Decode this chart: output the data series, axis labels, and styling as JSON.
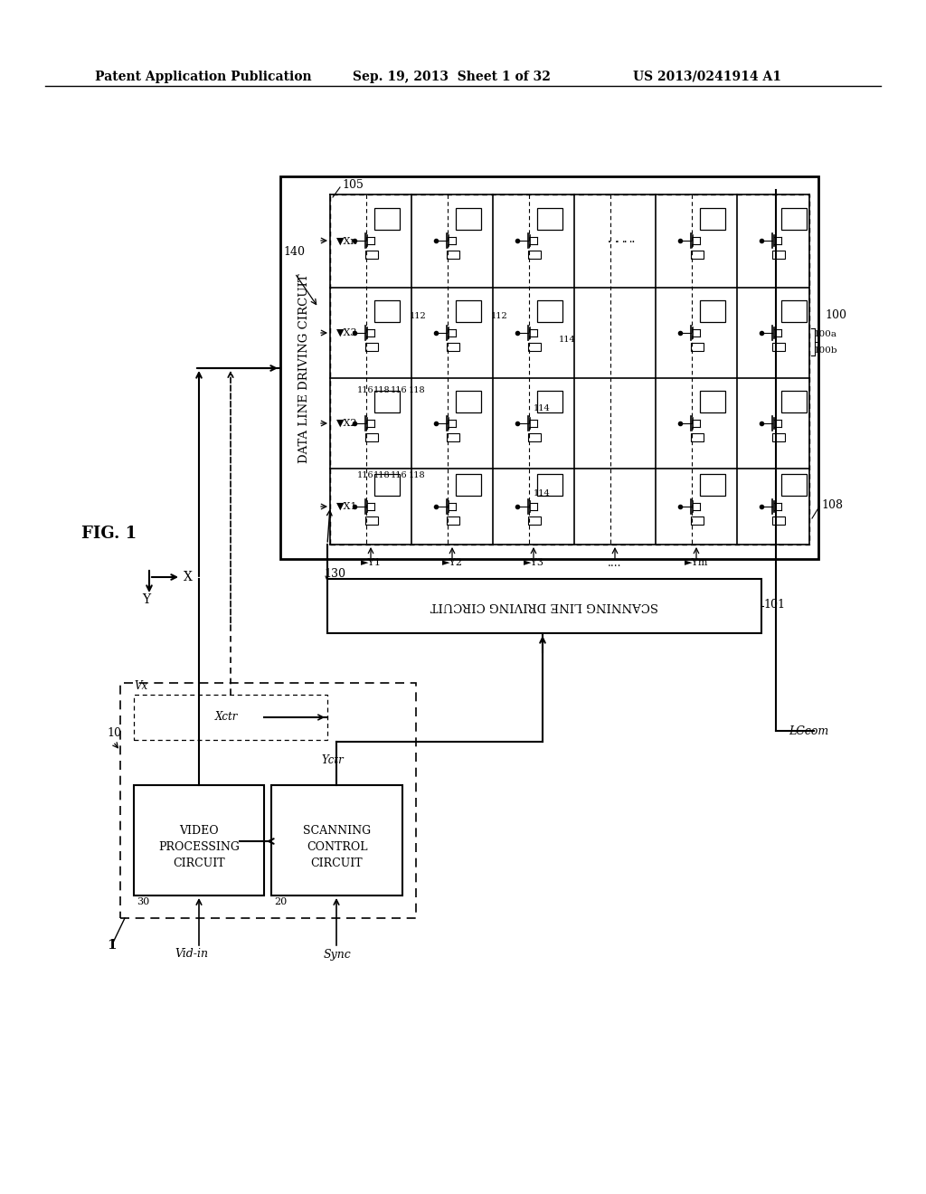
{
  "bg_color": "#ffffff",
  "header_left": "Patent Application Publication",
  "header_mid": "Sep. 19, 2013  Sheet 1 of 32",
  "header_right": "US 2013/0241914 A1",
  "fig_label": "FIG. 1",
  "title_font": 11,
  "header_font": 10
}
